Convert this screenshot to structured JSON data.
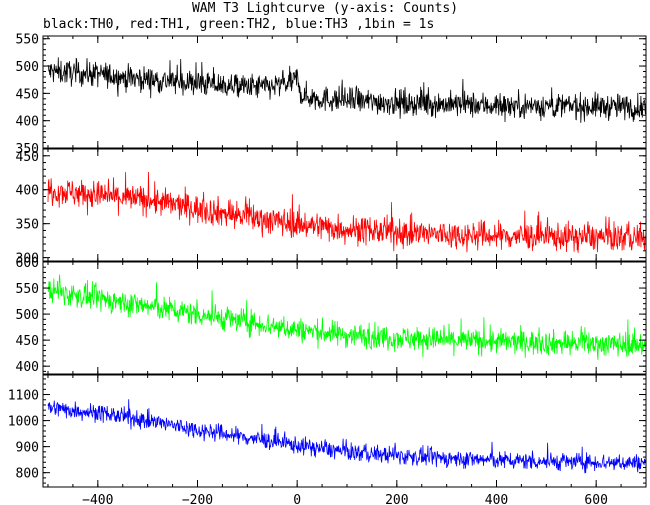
{
  "chart_data": {
    "type": "line",
    "title": "WAM T3 Lightcurve (y-axis: Counts)",
    "subtitle": "black:TH0, red:TH1, green:TH2, blue:TH3 ,1bin = 1s",
    "xlim": [
      -510,
      700
    ],
    "x_ticks": [
      "-400",
      "-200",
      "0",
      "200",
      "400",
      "600"
    ],
    "x_tick_values": [
      -400,
      -200,
      0,
      200,
      400,
      600
    ],
    "panels": [
      {
        "name": "TH0",
        "color": "#000000",
        "ylim": [
          350,
          555
        ],
        "y_ticks": [
          350,
          400,
          450,
          500,
          550
        ],
        "x": [
          -500,
          -450,
          -400,
          -350,
          -300,
          -250,
          -200,
          -150,
          -100,
          -50,
          -10,
          0,
          10,
          50,
          100,
          200,
          300,
          400,
          500,
          600,
          700
        ],
        "y": [
          490,
          488,
          485,
          480,
          476,
          472,
          468,
          465,
          462,
          462,
          470,
          478,
          445,
          440,
          437,
          433,
          430,
          428,
          427,
          426,
          425
        ],
        "noise": 28
      },
      {
        "name": "TH1",
        "color": "#ff0000",
        "ylim": [
          295,
          460
        ],
        "y_ticks": [
          300,
          350,
          400,
          450
        ],
        "x": [
          -500,
          -400,
          -300,
          -200,
          -100,
          0,
          100,
          200,
          300,
          400,
          500,
          600,
          700
        ],
        "y": [
          400,
          392,
          385,
          372,
          360,
          350,
          342,
          337,
          334,
          332,
          331,
          330,
          330
        ],
        "noise": 25
      },
      {
        "name": "TH2",
        "color": "#00ff00",
        "ylim": [
          385,
          600
        ],
        "y_ticks": [
          400,
          450,
          500,
          550,
          600
        ],
        "x": [
          -500,
          -400,
          -300,
          -200,
          -100,
          0,
          100,
          200,
          300,
          400,
          500,
          600,
          700
        ],
        "y": [
          545,
          530,
          515,
          500,
          485,
          470,
          460,
          455,
          450,
          447,
          445,
          443,
          442
        ],
        "noise": 28
      },
      {
        "name": "TH3",
        "color": "#0000ff",
        "ylim": [
          745,
          1175
        ],
        "y_ticks": [
          800,
          900,
          1000,
          1100
        ],
        "x": [
          -500,
          -400,
          -300,
          -200,
          -100,
          0,
          100,
          200,
          300,
          400,
          500,
          600,
          700
        ],
        "y": [
          1050,
          1030,
          1000,
          965,
          935,
          905,
          880,
          865,
          855,
          848,
          843,
          840,
          838
        ],
        "noise": 40
      }
    ]
  }
}
